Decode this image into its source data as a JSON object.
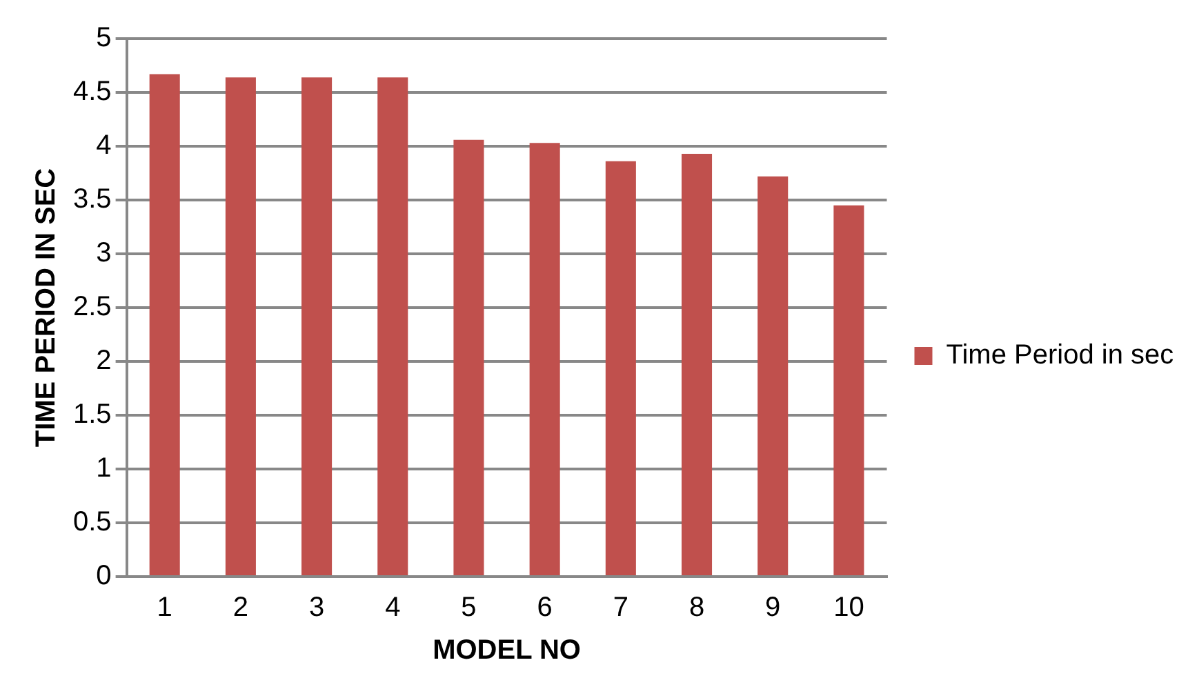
{
  "chart_data": {
    "type": "bar",
    "xlabel": "MODEL NO",
    "ylabel": "TIME PERIOD IN SEC",
    "categories": [
      "1",
      "2",
      "3",
      "4",
      "5",
      "6",
      "7",
      "8",
      "9",
      "10"
    ],
    "series": [
      {
        "name": "Time Period in sec",
        "color": "#c0504d",
        "values": [
          4.67,
          4.64,
          4.64,
          4.64,
          4.06,
          4.03,
          3.86,
          3.93,
          3.72,
          3.45
        ]
      }
    ],
    "ylim": [
      0,
      5
    ],
    "yticks": [
      0,
      0.5,
      1,
      1.5,
      2,
      2.5,
      3,
      3.5,
      4,
      4.5,
      5
    ],
    "grid": "y",
    "legend": "right"
  }
}
